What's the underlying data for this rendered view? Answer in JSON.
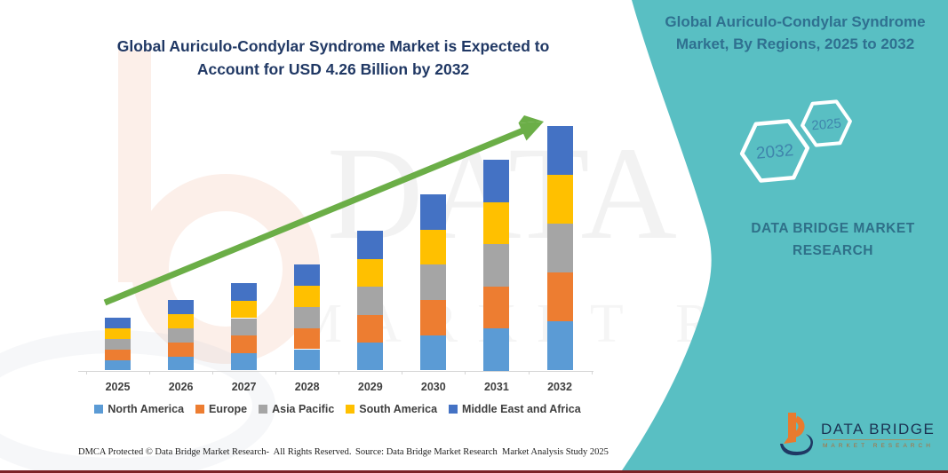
{
  "header": {
    "title_line1": "Global Auriculo-Condylar Syndrome Market is Expected to",
    "title_line2": "Account for USD 4.26 Billion by 2032"
  },
  "right_panel": {
    "heading_line1": "Global Auriculo-Condylar Syndrome",
    "heading_line2": "Market, By Regions, 2025 to 2032",
    "hexagon_large_label": "2032",
    "hexagon_small_label": "2025",
    "brand_line1": "DATA BRIDGE MARKET",
    "brand_line2": "RESEARCH"
  },
  "watermark": {
    "line1": "DATA BRIDGE",
    "line2": "MARKET RESEARCH"
  },
  "chart_data": {
    "type": "bar",
    "stacked": true,
    "title": "Global Auriculo-Condylar Syndrome Market is Expected to Account for USD 4.26 Billion by 2032",
    "unit": "USD Billion",
    "categories": [
      "2025",
      "2026",
      "2027",
      "2028",
      "2029",
      "2030",
      "2031",
      "2032"
    ],
    "series": [
      {
        "name": "North America",
        "color": "#5B9BD5",
        "values": [
          0.184,
          0.246,
          0.304,
          0.37,
          0.486,
          0.614,
          0.734,
          0.852
        ]
      },
      {
        "name": "Europe",
        "color": "#ED7D31",
        "values": [
          0.184,
          0.246,
          0.304,
          0.37,
          0.486,
          0.614,
          0.734,
          0.852
        ]
      },
      {
        "name": "Asia Pacific",
        "color": "#A5A5A5",
        "values": [
          0.184,
          0.246,
          0.304,
          0.37,
          0.486,
          0.614,
          0.734,
          0.852
        ]
      },
      {
        "name": "South America",
        "color": "#FFC000",
        "values": [
          0.184,
          0.246,
          0.304,
          0.37,
          0.486,
          0.614,
          0.734,
          0.852
        ]
      },
      {
        "name": "Middle East and Africa",
        "color": "#4472C4",
        "values": [
          0.184,
          0.246,
          0.304,
          0.37,
          0.486,
          0.614,
          0.734,
          0.852
        ]
      }
    ],
    "totals_estimated": [
      0.92,
      1.23,
      1.52,
      1.85,
      2.43,
      3.07,
      3.67,
      4.26
    ],
    "ylim": [
      0,
      4.5
    ],
    "grid": false,
    "y_axis_shown": false,
    "legend_position": "bottom",
    "trend_arrow": true,
    "annotation": "2032 total = USD 4.26 Billion"
  },
  "footer": {
    "left": "DMCA Protected © Data Bridge Market Research-  All Rights Reserved.",
    "source": "Source: Data Bridge Market Research  Market Analysis Study 2025"
  },
  "logo": {
    "name": "DATA BRIDGE",
    "sub": "MARKET RESEARCH"
  },
  "colors": {
    "teal_panel": "#59bfc3",
    "main_title": "#203864",
    "panel_text": "#2f7090",
    "hexagon_text": "#3f85ac",
    "arrow_green": "#6bae47",
    "bottom_line": "#7b2125",
    "axis_gray": "#d5d5d5"
  }
}
